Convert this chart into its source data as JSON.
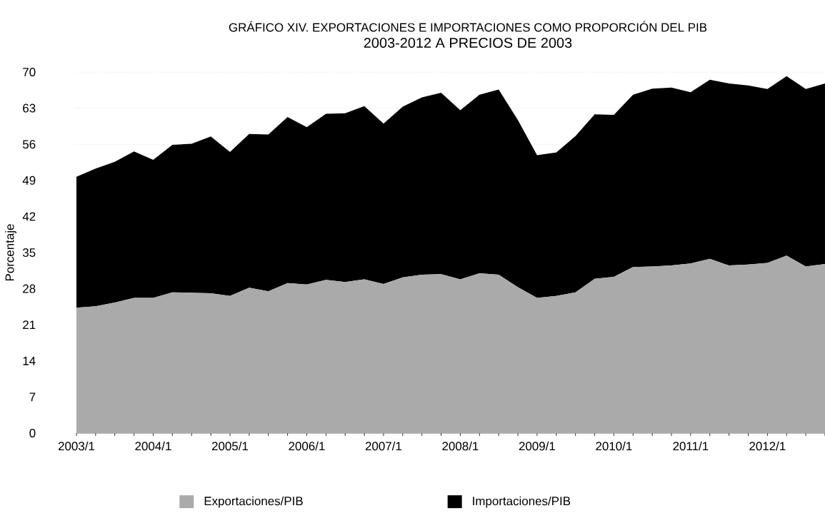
{
  "chart_data": {
    "type": "area",
    "title": "GRÁFICO XIV. EXPORTACIONES E IMPORTACIONES COMO PROPORCIÓN DEL PIB",
    "subtitle": "2003-2012 A PRECIOS DE 2003",
    "ylabel": "Porcentaje",
    "categories": [
      "2003/1",
      null,
      null,
      null,
      "2004/1",
      null,
      null,
      null,
      "2005/1",
      null,
      null,
      null,
      "2006/1",
      null,
      null,
      null,
      "2007/1",
      null,
      null,
      null,
      "2008/1",
      null,
      null,
      null,
      "2009/1",
      null,
      null,
      null,
      "2010/1",
      null,
      null,
      null,
      "2011/1",
      null,
      null,
      null,
      "2012/1",
      null,
      null,
      null
    ],
    "series": [
      {
        "name": "Exportaciones/PIB",
        "color": "#aaaaaa",
        "values": [
          24.3,
          24.6,
          25.3,
          26.2,
          26.2,
          27.3,
          27.2,
          27.1,
          26.6,
          28.2,
          27.5,
          29.1,
          28.8,
          29.7,
          29.3,
          29.8,
          28.9,
          30.2,
          30.7,
          30.8,
          29.8,
          31.0,
          30.7,
          28.3,
          26.2,
          26.6,
          27.3,
          29.9,
          30.3,
          32.2,
          32.3,
          32.5,
          32.9,
          33.8,
          32.5,
          32.7,
          33.0,
          34.4,
          32.3,
          32.8
        ]
      },
      {
        "name": "Importaciones/PIB",
        "color": "#000000",
        "values": [
          25.4,
          26.7,
          27.3,
          28.4,
          26.8,
          28.6,
          28.9,
          30.4,
          27.9,
          29.8,
          30.4,
          32.2,
          30.5,
          32.2,
          32.7,
          33.6,
          31.1,
          33.1,
          34.4,
          35.2,
          32.8,
          34.6,
          35.9,
          32.4,
          27.7,
          27.8,
          30.3,
          31.9,
          31.4,
          33.4,
          34.5,
          34.5,
          33.2,
          34.7,
          35.3,
          34.7,
          33.7,
          34.8,
          34.4,
          35.0
        ]
      }
    ],
    "stacked": true,
    "ylim": [
      0,
      70
    ],
    "yticks": [
      0,
      7,
      14,
      21,
      28,
      35,
      42,
      49,
      56,
      63,
      70
    ],
    "grid": "y",
    "legend": "bottom"
  }
}
